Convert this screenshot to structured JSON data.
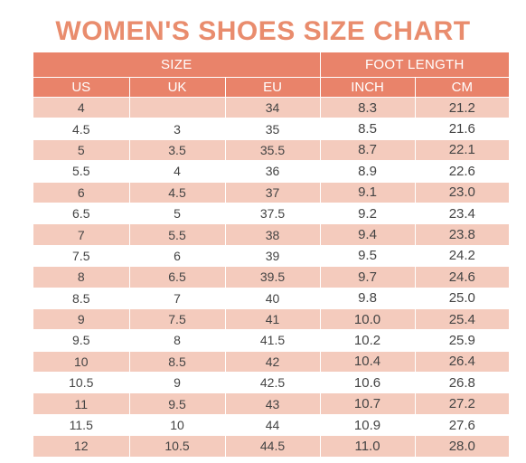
{
  "title": "WOMEN'S SHOES SIZE CHART",
  "colors": {
    "title": "#e98c6d",
    "header_bg": "#e9836a",
    "stripe": "#f4cbbd"
  },
  "groups": {
    "size": "SIZE",
    "foot_length": "FOOT LENGTH"
  },
  "columns": [
    "US",
    "UK",
    "EU",
    "INCH",
    "CM"
  ],
  "rows": [
    [
      "4",
      "",
      "34",
      "8.3",
      "21.2"
    ],
    [
      "4.5",
      "3",
      "35",
      "8.5",
      "21.6"
    ],
    [
      "5",
      "3.5",
      "35.5",
      "8.7",
      "22.1"
    ],
    [
      "5.5",
      "4",
      "36",
      "8.9",
      "22.6"
    ],
    [
      "6",
      "4.5",
      "37",
      "9.1",
      "23.0"
    ],
    [
      "6.5",
      "5",
      "37.5",
      "9.2",
      "23.4"
    ],
    [
      "7",
      "5.5",
      "38",
      "9.4",
      "23.8"
    ],
    [
      "7.5",
      "6",
      "39",
      "9.5",
      "24.2"
    ],
    [
      "8",
      "6.5",
      "39.5",
      "9.7",
      "24.6"
    ],
    [
      "8.5",
      "7",
      "40",
      "9.8",
      "25.0"
    ],
    [
      "9",
      "7.5",
      "41",
      "10.0",
      "25.4"
    ],
    [
      "9.5",
      "8",
      "41.5",
      "10.2",
      "25.9"
    ],
    [
      "10",
      "8.5",
      "42",
      "10.4",
      "26.4"
    ],
    [
      "10.5",
      "9",
      "42.5",
      "10.6",
      "26.8"
    ],
    [
      "11",
      "9.5",
      "43",
      "10.7",
      "27.2"
    ],
    [
      "11.5",
      "10",
      "44",
      "10.9",
      "27.6"
    ],
    [
      "12",
      "10.5",
      "44.5",
      "11.0",
      "28.0"
    ]
  ]
}
